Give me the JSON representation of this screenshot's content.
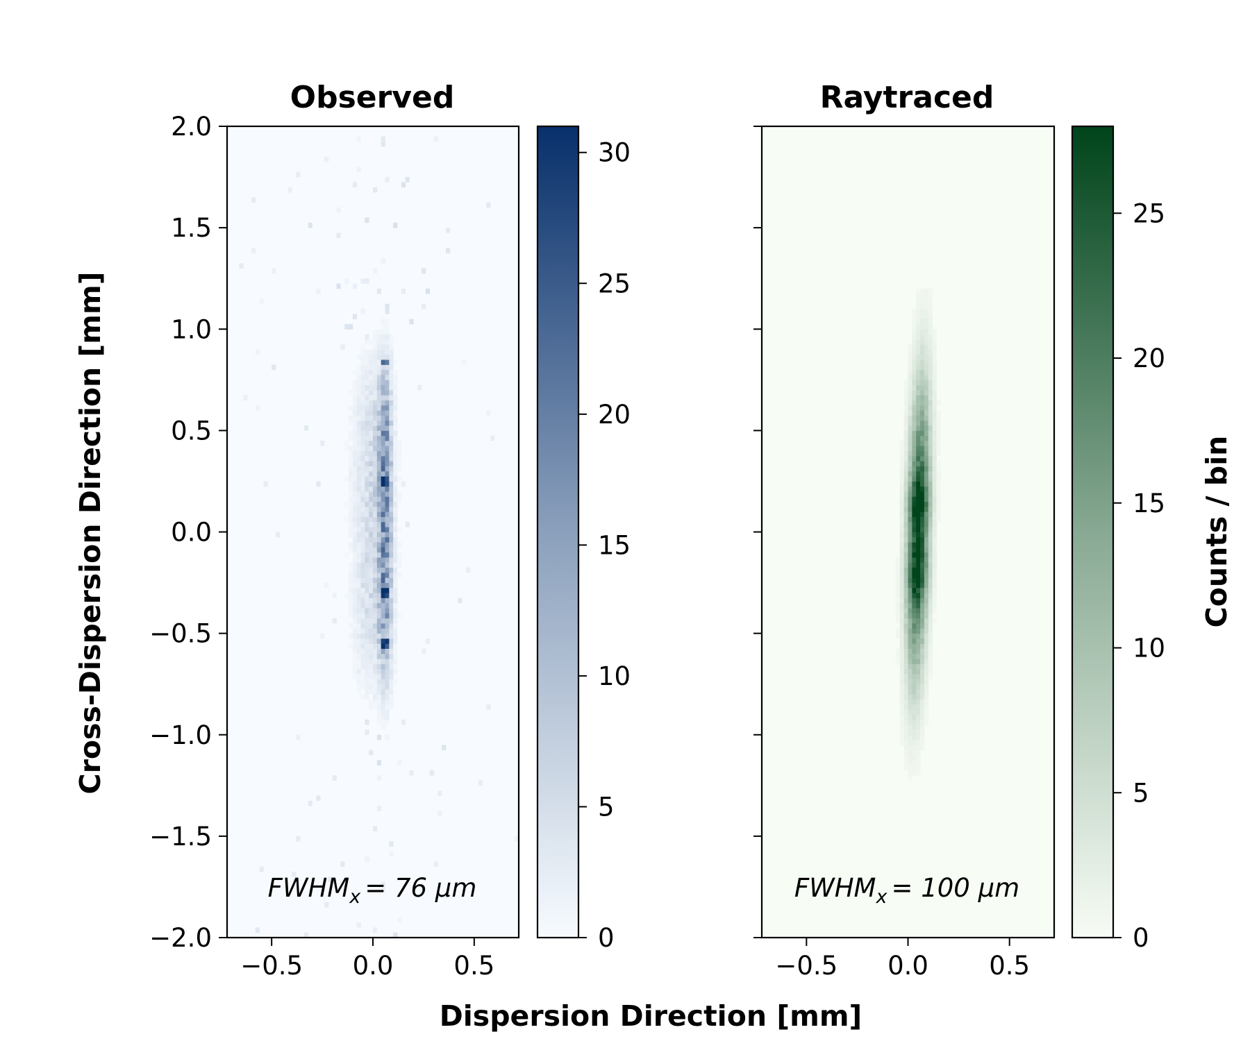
{
  "figure": {
    "xlabel": "Dispersion Direction [mm]",
    "ylabel": "Cross-Dispersion Direction [mm]",
    "colorbar_label": "Counts / bin"
  },
  "chart_data": [
    {
      "type": "heatmap",
      "title": "Observed",
      "colormap": "Blues",
      "cmap_low": "#f7fbff",
      "cmap_high": "#08306b",
      "annotation": {
        "prefix": "FWHM",
        "subscript": "x",
        "value": "= 76 μm"
      },
      "xlim": [
        -0.72,
        0.72
      ],
      "ylim": [
        -2.0,
        2.0
      ],
      "xticks": [
        -0.5,
        0.0,
        0.5
      ],
      "xtick_labels": [
        "−0.5",
        "0.0",
        "0.5"
      ],
      "yticks": [
        -2.0,
        -1.5,
        -1.0,
        -0.5,
        0.0,
        0.5,
        1.0,
        1.5,
        2.0
      ],
      "ytick_labels": [
        "−2.0",
        "−1.5",
        "−1.0",
        "−0.5",
        "0.0",
        "0.5",
        "1.0",
        "1.5",
        "2.0"
      ],
      "colorbar": {
        "min": 0,
        "max": 31,
        "ticks": [
          0,
          5,
          10,
          15,
          20,
          25,
          30
        ],
        "tick_labels": [
          "0",
          "5",
          "10",
          "15",
          "20",
          "25",
          "30"
        ]
      },
      "bins": {
        "x_min": -0.72,
        "x_max": 0.72,
        "y_min": -2.0,
        "y_max": 2.0,
        "nx": 72,
        "ny": 160
      },
      "distribution": {
        "model": "core",
        "center_x": 0.06,
        "sigma_x_core": 0.022,
        "halo_center_x": 0.0,
        "sigma_x_halo": 0.06,
        "y_center": 0.05,
        "y_half_length": 0.78,
        "peak_count": 31,
        "peak_y": [
          0.84,
          0.25,
          -0.3,
          -0.55
        ],
        "noise_seed": 7
      }
    },
    {
      "type": "heatmap",
      "title": "Raytraced",
      "colormap": "Greens",
      "cmap_low": "#f7fcf5",
      "cmap_high": "#00441b",
      "annotation": {
        "prefix": "FWHM",
        "subscript": "x",
        "value": "= 100 μm"
      },
      "xlim": [
        -0.72,
        0.72
      ],
      "ylim": [
        -2.0,
        2.0
      ],
      "xticks": [
        -0.5,
        0.0,
        0.5
      ],
      "xtick_labels": [
        "−0.5",
        "0.0",
        "0.5"
      ],
      "yticks": [
        -2.0,
        -1.5,
        -1.0,
        -0.5,
        0.0,
        0.5,
        1.0,
        1.5,
        2.0
      ],
      "colorbar": {
        "min": 0,
        "max": 28,
        "ticks": [
          0,
          5,
          10,
          15,
          20,
          25
        ],
        "tick_labels": [
          "0",
          "5",
          "10",
          "15",
          "20",
          "25"
        ]
      },
      "bins": {
        "x_min": -0.72,
        "x_max": 0.72,
        "y_min": -2.0,
        "y_max": 2.0,
        "nx": 72,
        "ny": 160
      },
      "distribution": {
        "model": "smooth",
        "center_x": 0.05,
        "sigma_x": 0.035,
        "y_center": 0.0,
        "sigma_y": 0.45,
        "tilt": 0.025,
        "peak_count": 28,
        "peak_y": [
          0.15,
          -0.22
        ],
        "noise_seed": 11
      }
    }
  ]
}
